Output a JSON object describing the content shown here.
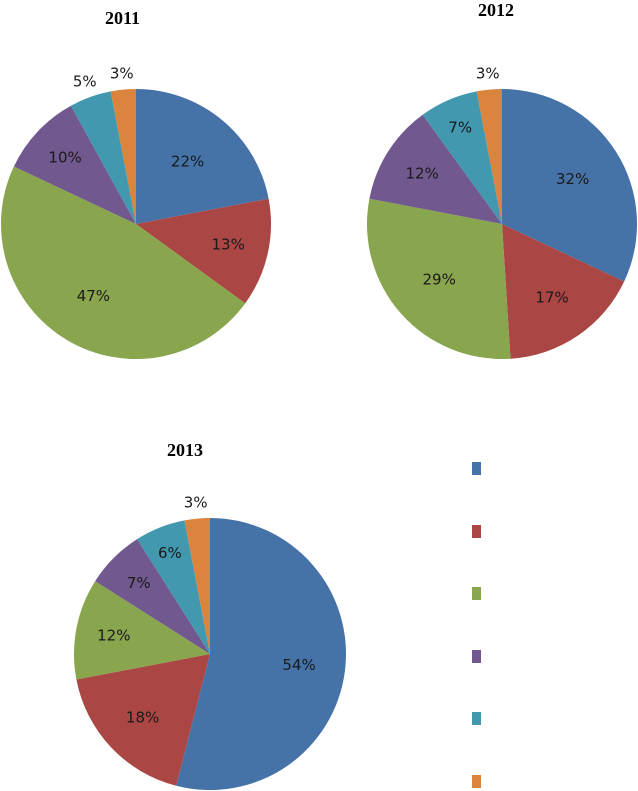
{
  "chart_data": [
    {
      "type": "pie",
      "title": "2011",
      "values": [
        22,
        13,
        47,
        10,
        5,
        3
      ],
      "labels": [
        "22%",
        "13%",
        "47%",
        "10%",
        "5%",
        "3%"
      ]
    },
    {
      "type": "pie",
      "title": "2012",
      "values": [
        32,
        17,
        29,
        12,
        7,
        3
      ],
      "labels": [
        "32%",
        "17%",
        "29%",
        "12%",
        "7%",
        "3%"
      ]
    },
    {
      "type": "pie",
      "title": "2013",
      "values": [
        54,
        18,
        12,
        7,
        6,
        3
      ],
      "labels": [
        "54%",
        "18%",
        "12%",
        "7%",
        "6%",
        "3%"
      ]
    }
  ],
  "colors": [
    "#4572a7",
    "#aa4643",
    "#89a54e",
    "#71588f",
    "#4198af",
    "#db843d"
  ],
  "legend": {
    "position": "right of 2013 chart",
    "items": [
      "",
      "",
      "",
      "",
      "",
      ""
    ]
  }
}
